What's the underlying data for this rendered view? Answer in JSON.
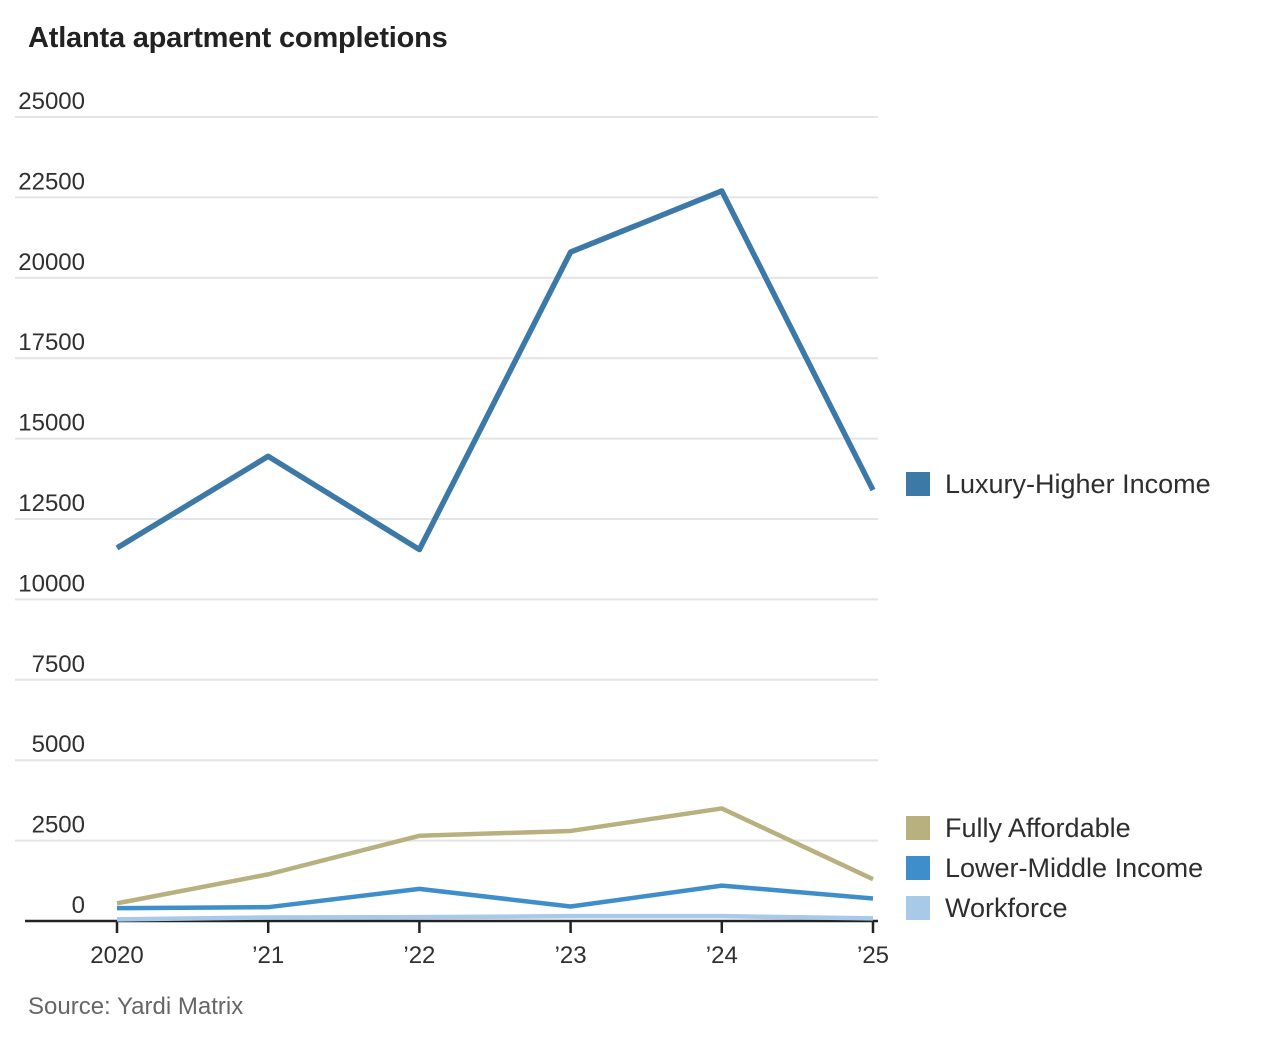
{
  "chart": {
    "title": "Atlanta apartment completions",
    "source": "Source: Yardi Matrix"
  },
  "chart_data": {
    "type": "line",
    "categories": [
      "2020",
      "’21",
      "’22",
      "’23",
      "’24",
      "’25"
    ],
    "series": [
      {
        "name": "Luxury-Higher Income",
        "color": "#3c79a6",
        "values": [
          11600,
          14450,
          11550,
          20800,
          22700,
          13400
        ]
      },
      {
        "name": "Fully Affordable",
        "color": "#b8b07f",
        "values": [
          550,
          1450,
          2650,
          2800,
          3500,
          1300
        ]
      },
      {
        "name": "Lower-Middle Income",
        "color": "#3e8ecb",
        "values": [
          400,
          430,
          1000,
          450,
          1100,
          700
        ]
      },
      {
        "name": "Workforce",
        "color": "#a8c9e8",
        "values": [
          50,
          110,
          120,
          150,
          150,
          80
        ]
      }
    ],
    "ylim": [
      0,
      25000
    ],
    "ytick_step": 2500,
    "grid": true,
    "legend_position": "right",
    "colors": {
      "gridline": "#e4e4e4",
      "axis": "#222222",
      "tick_label": "#303030"
    }
  }
}
